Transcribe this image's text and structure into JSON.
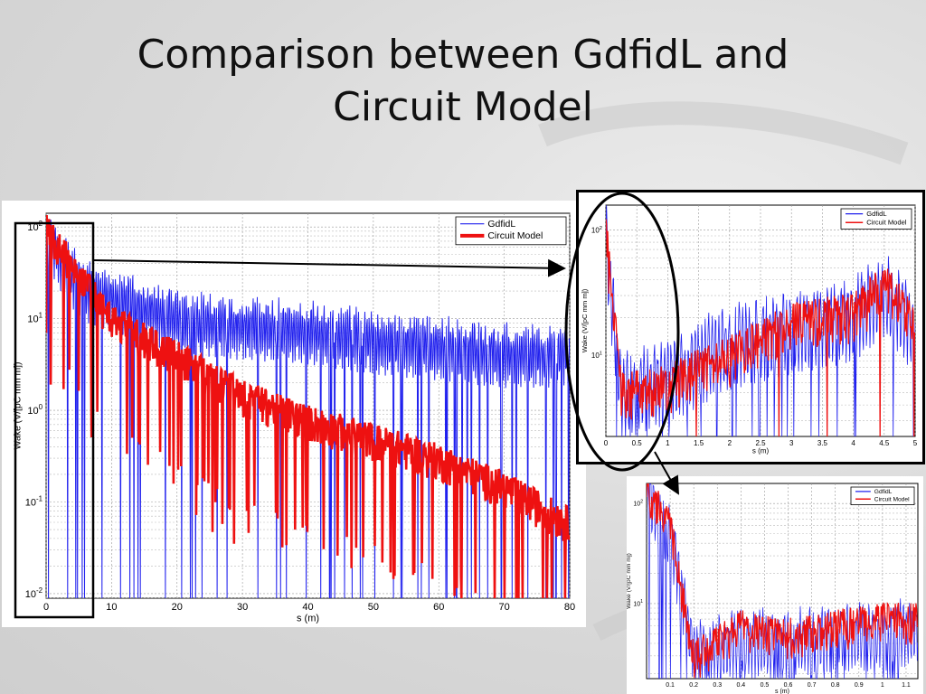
{
  "slide": {
    "title_line1": "Comparison between GdfidL and",
    "title_line2": "Circuit Model"
  },
  "colors": {
    "background": "#d9d9d9",
    "gdfidl": "#2020ee",
    "circuit_model": "#ee1111",
    "highlight_box": "#000000"
  },
  "chart_data": [
    {
      "id": "main",
      "type": "line",
      "xlabel": "s (m)",
      "ylabel": "Wake (V/[pC mm m])",
      "xlim": [
        0,
        80
      ],
      "ylim": [
        0.01,
        200
      ],
      "y_scale": "log",
      "grid": true,
      "legend_position": "top-right",
      "x_ticks": [
        "0",
        "10",
        "20",
        "30",
        "40",
        "50",
        "60",
        "70",
        "80"
      ],
      "y_ticks": [
        {
          "base": "10",
          "exp": "2"
        },
        {
          "base": "10",
          "exp": "1"
        },
        {
          "base": "10",
          "exp": "0"
        },
        {
          "base": "10",
          "exp": "-1"
        },
        {
          "base": "10",
          "exp": "-2"
        }
      ],
      "series": [
        {
          "name": "GdfidL",
          "x": [
            0,
            5,
            10,
            20,
            30,
            40,
            50,
            60,
            70,
            80
          ],
          "y": [
            100,
            28,
            20,
            12,
            10,
            9,
            7,
            6,
            5,
            5
          ]
        },
        {
          "name": "Circuit Model",
          "x": [
            0,
            5,
            10,
            20,
            30,
            40,
            50,
            60,
            70,
            80
          ],
          "y": [
            100,
            30,
            10,
            4,
            1.5,
            0.8,
            0.5,
            0.3,
            0.15,
            0.06
          ]
        }
      ]
    },
    {
      "id": "zoom1",
      "type": "line",
      "xlabel": "s (m)",
      "ylabel": "Wake (V/[pC mm m])",
      "xlim": [
        0,
        5
      ],
      "y_scale": "log",
      "grid": true,
      "legend_position": "top-right",
      "x_ticks": [
        "0",
        "0.5",
        "1",
        "1.5",
        "2",
        "2.5",
        "3",
        "3.5",
        "4",
        "4.5",
        "5"
      ],
      "y_ticks": [
        {
          "base": "10",
          "exp": "2"
        },
        {
          "base": "10",
          "exp": "1"
        }
      ],
      "series": [
        {
          "name": "GdfidL",
          "x": [
            0,
            0.25,
            1,
            2,
            3,
            4,
            4.5,
            5
          ],
          "y": [
            100,
            6,
            8,
            15,
            20,
            25,
            40,
            20
          ]
        },
        {
          "name": "Circuit Model",
          "x": [
            0,
            0.25,
            1,
            2,
            3,
            4,
            4.5,
            5
          ],
          "y": [
            100,
            5,
            6,
            10,
            18,
            22,
            38,
            18
          ]
        }
      ]
    },
    {
      "id": "zoom2",
      "type": "line",
      "xlabel": "s (m)",
      "ylabel": "Wake (V/[pC mm m])",
      "xlim": [
        0,
        1.15
      ],
      "y_scale": "log",
      "grid": true,
      "legend_position": "top-right",
      "x_ticks": [
        "0.1",
        "0.2",
        "0.3",
        "0.4",
        "0.5",
        "0.6",
        "0.7",
        "0.8",
        "0.9",
        "1",
        "1.1"
      ],
      "y_ticks": [
        {
          "base": "10",
          "exp": "2"
        },
        {
          "base": "10",
          "exp": "1"
        }
      ],
      "series": [
        {
          "name": "GdfidL",
          "x": [
            0,
            0.1,
            0.2,
            0.4,
            0.6,
            0.8,
            1.0,
            1.15
          ],
          "y": [
            150,
            60,
            4,
            5,
            5,
            6,
            6,
            7
          ]
        },
        {
          "name": "Circuit Model",
          "x": [
            0,
            0.1,
            0.2,
            0.4,
            0.6,
            0.8,
            1.0,
            1.15
          ],
          "y": [
            150,
            60,
            3,
            6,
            5,
            6,
            7,
            7
          ]
        }
      ]
    }
  ]
}
